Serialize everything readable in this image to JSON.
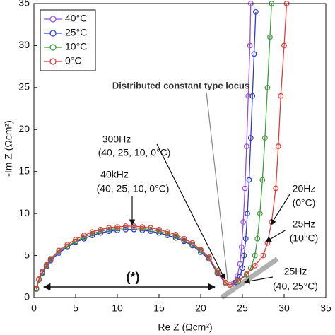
{
  "chart_data": {
    "type": "line",
    "xlabel": "Re Z (Ωcm²)",
    "ylabel": "-Im Z (Ωcm²)",
    "xlim": [
      0,
      35
    ],
    "ylim": [
      0,
      35
    ],
    "xticks": [
      0,
      5,
      10,
      15,
      20,
      25,
      30,
      35
    ],
    "yticks": [
      0,
      5,
      10,
      15,
      20,
      25,
      30,
      35
    ],
    "legend": "upper left",
    "grid": false,
    "marker": "open-circle",
    "series": [
      {
        "name": "40°C",
        "color": "#9b4fd6",
        "x": [
          0.3,
          0.6,
          1,
          1.5,
          2,
          3,
          4,
          5,
          6,
          7,
          8,
          9,
          10,
          11,
          12,
          13,
          14,
          15,
          16,
          17,
          18,
          19,
          20,
          21,
          22,
          23,
          23.5,
          24,
          24.4,
          24.7,
          24.9,
          25.1,
          25.3,
          25.5,
          25.7,
          25.9,
          26.0
        ],
        "y": [
          1.0,
          2.1,
          2.9,
          3.7,
          4.4,
          5.3,
          6.0,
          6.6,
          7.0,
          7.4,
          7.7,
          7.9,
          8.0,
          8.1,
          8.1,
          8.0,
          7.9,
          7.7,
          7.4,
          7.1,
          6.7,
          6.2,
          5.4,
          4.6,
          2.9,
          1.7,
          1.5,
          1.8,
          2.6,
          4,
          6,
          9,
          13,
          18,
          24,
          30,
          35
        ]
      },
      {
        "name": "25°C",
        "color": "#2f3bd8",
        "x": [
          0.3,
          0.6,
          1,
          1.5,
          2,
          3,
          4,
          5,
          6,
          7,
          8,
          9,
          10,
          11,
          12,
          13,
          14,
          15,
          16,
          17,
          18,
          19,
          20,
          21,
          22,
          23,
          23.5,
          24.2,
          24.7,
          25,
          25.2,
          25.4,
          25.6,
          25.8,
          26,
          26.2,
          26.4,
          26.6
        ],
        "y": [
          1.0,
          2.1,
          2.9,
          3.7,
          4.4,
          5.3,
          6.0,
          6.6,
          7.0,
          7.4,
          7.7,
          7.9,
          8.0,
          8.1,
          8.1,
          8.0,
          7.9,
          7.7,
          7.4,
          7.1,
          6.7,
          6.2,
          5.4,
          4.6,
          2.9,
          1.7,
          1.5,
          1.8,
          2.5,
          3.5,
          5,
          7,
          10,
          14,
          19,
          24,
          29,
          34
        ]
      },
      {
        "name": "10°C",
        "color": "#3c9e3c",
        "x": [
          0.3,
          0.6,
          1,
          1.5,
          2,
          3,
          4,
          5,
          6,
          7,
          8,
          9,
          10,
          11,
          12,
          13,
          14,
          15,
          16,
          17,
          18,
          19,
          20,
          21,
          22,
          23,
          23.5,
          24.5,
          25.5,
          26,
          26.5,
          26.8,
          27.1,
          27.4,
          27.7,
          28,
          28.3,
          28.5
        ],
        "y": [
          1.0,
          2.1,
          3.0,
          3.8,
          4.5,
          5.5,
          6.1,
          6.7,
          7.2,
          7.6,
          7.9,
          8.1,
          8.2,
          8.3,
          8.3,
          8.2,
          8.1,
          7.9,
          7.6,
          7.3,
          6.8,
          6.3,
          5.6,
          4.7,
          3.2,
          1.7,
          1.5,
          1.9,
          2.7,
          3.5,
          5,
          7,
          10,
          14,
          19,
          25,
          31,
          35
        ]
      },
      {
        "name": "0°C",
        "color": "#e23b3b",
        "x": [
          0.3,
          0.6,
          1,
          1.5,
          2,
          3,
          4,
          5,
          6,
          7,
          8,
          9,
          10,
          11,
          12,
          13,
          14,
          15,
          16,
          17,
          18,
          19,
          20,
          21,
          22,
          23,
          23.5,
          24.5,
          25.5,
          26.5,
          27.5,
          28,
          28.5,
          29,
          29.3,
          29.6,
          30,
          30.3
        ],
        "y": [
          1.1,
          2.2,
          3.1,
          3.9,
          4.6,
          5.6,
          6.3,
          6.9,
          7.4,
          7.8,
          8.1,
          8.3,
          8.4,
          8.5,
          8.5,
          8.4,
          8.3,
          8.1,
          7.8,
          7.5,
          7.0,
          6.5,
          5.7,
          4.8,
          3.0,
          1.8,
          1.5,
          2.0,
          2.8,
          3.8,
          5,
          6.5,
          9,
          13,
          18,
          24,
          30,
          35
        ]
      }
    ],
    "annotations": [
      "Distributed constant type locus",
      "300Hz",
      "(40, 25, 10, 0°C)",
      "40kHz",
      "(40, 25, 10, 0°C)",
      "20Hz",
      "(0°C)",
      "25Hz",
      "(10°C)",
      "25Hz",
      "(40, 25°C)",
      "(*)"
    ]
  }
}
